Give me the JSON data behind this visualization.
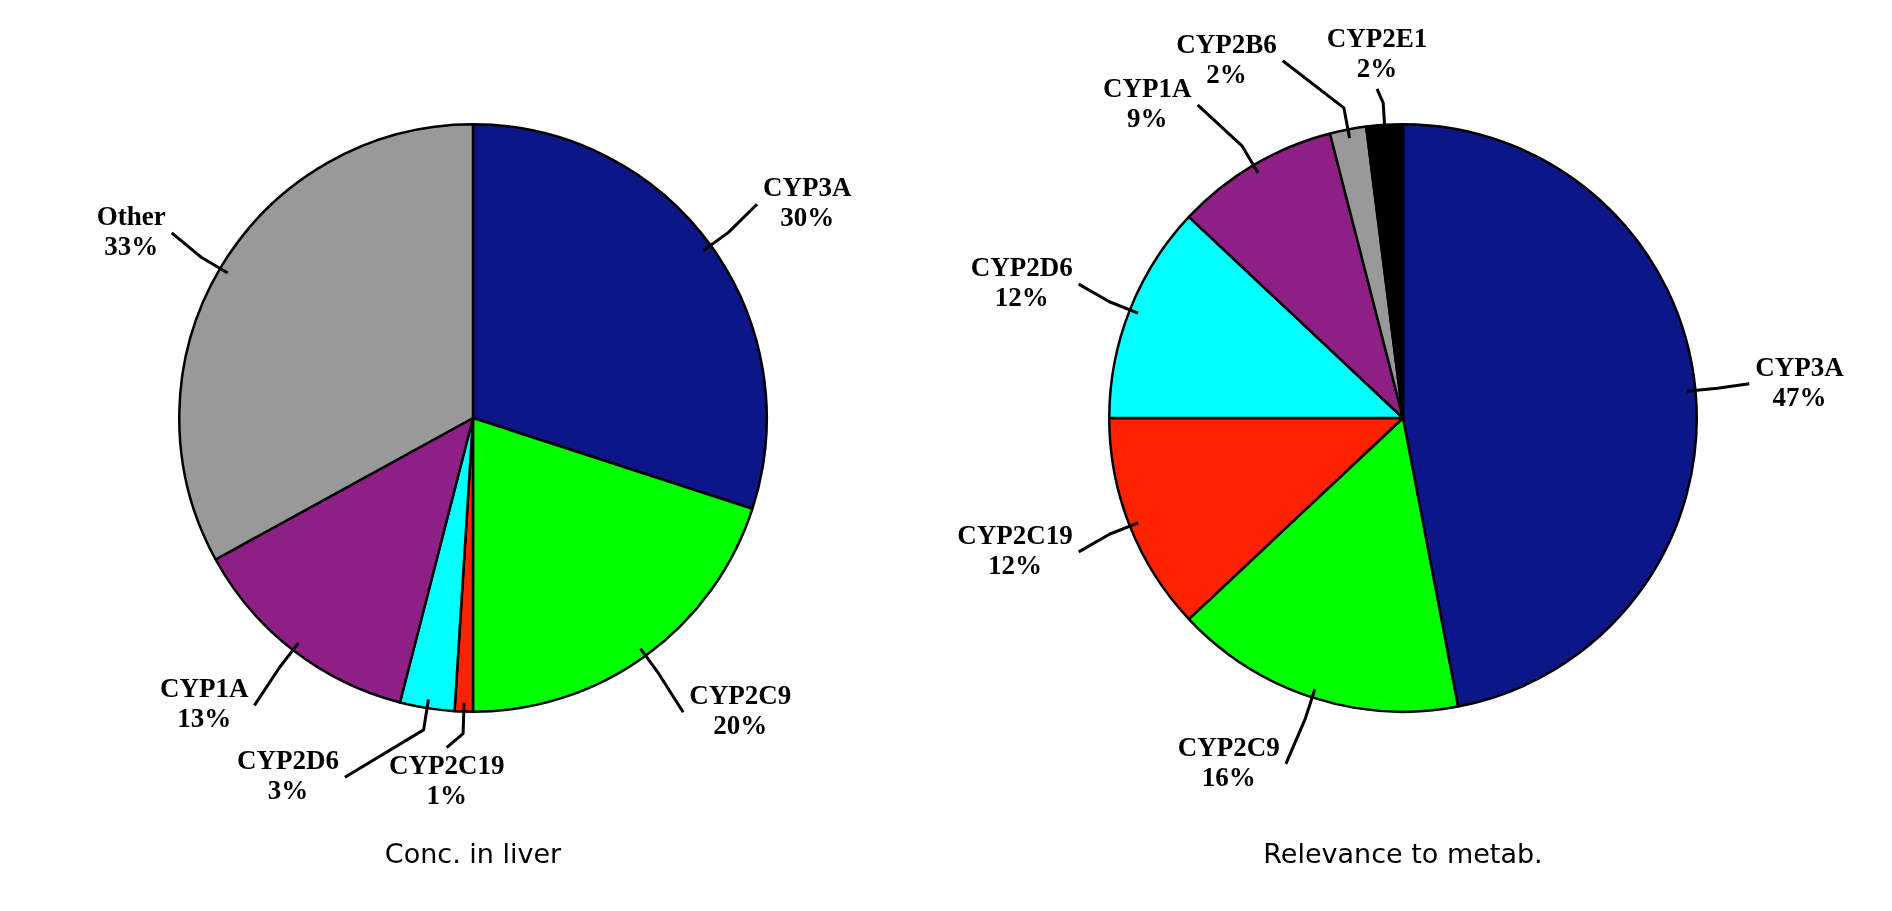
{
  "chart_data": [
    {
      "type": "pie",
      "title": "Conc. in liver",
      "categories": [
        "CYP3A",
        "CYP2C9",
        "CYP2C19",
        "CYP2D6",
        "CYP1A",
        "Other"
      ],
      "values": [
        30,
        20,
        1,
        3,
        13,
        33
      ],
      "colors": [
        "#0c1687",
        "#00ff00",
        "#ff2200",
        "#00ffff",
        "#8e1f84",
        "#999999"
      ],
      "value_labels": [
        "30%",
        "20%",
        "1%",
        "3%",
        "13%",
        "33%"
      ],
      "legend": false
    },
    {
      "type": "pie",
      "title": "Relevance to metab.",
      "categories": [
        "CYP3A",
        "CYP2C9",
        "CYP2C19",
        "CYP2D6",
        "CYP1A",
        "CYP2B6",
        "CYP2E1"
      ],
      "values": [
        47,
        16,
        12,
        12,
        9,
        2,
        2
      ],
      "colors": [
        "#0c1687",
        "#00ff00",
        "#ff2200",
        "#00ffff",
        "#8e1f84",
        "#999999",
        "#000000"
      ],
      "value_labels": [
        "47%",
        "16%",
        "12%",
        "12%",
        "9%",
        "2%",
        "2%"
      ],
      "legend": false
    }
  ]
}
